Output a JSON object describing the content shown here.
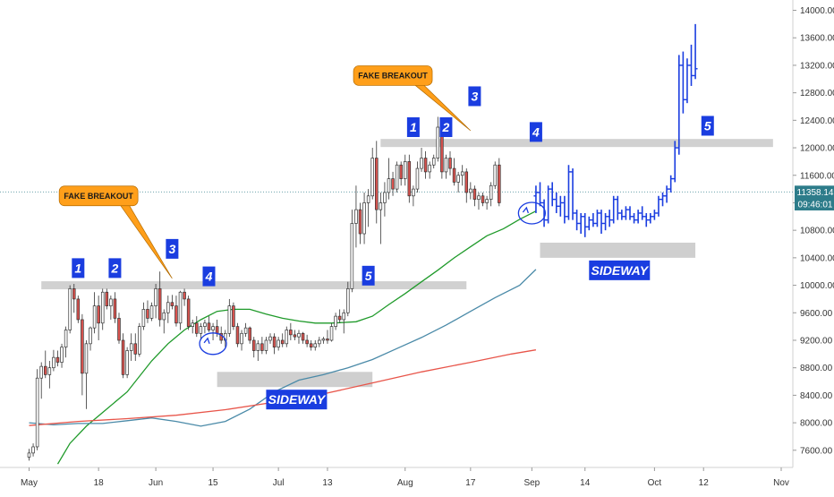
{
  "chart_data": {
    "type": "candlestick",
    "title": "",
    "xlabel": "",
    "ylabel": "",
    "ylim": [
      7350,
      14150
    ],
    "y_ticks": [
      7600,
      8000,
      8400,
      8800,
      9200,
      9600,
      10000,
      10400,
      10800,
      11200,
      11600,
      12000,
      12400,
      12800,
      13200,
      13600,
      14000
    ],
    "y_tick_labels": [
      "7600.00",
      "8000.00",
      "8400.00",
      "8800.00",
      "9200.00",
      "9600.00",
      "10000.00",
      "10400.00",
      "10800.00",
      "11200.00",
      "11600.00",
      "12000.00",
      "12400.00",
      "12800.00",
      "13200.00",
      "13600.00",
      "14000.00"
    ],
    "x_tick_labels": [
      {
        "day": 0,
        "label": "May"
      },
      {
        "day": 17,
        "label": "18"
      },
      {
        "day": 31,
        "label": "Jun"
      },
      {
        "day": 45,
        "label": "15"
      },
      {
        "day": 61,
        "label": "Jul"
      },
      {
        "day": 73,
        "label": "13"
      },
      {
        "day": 92,
        "label": "Aug"
      },
      {
        "day": 108,
        "label": "17"
      },
      {
        "day": 123,
        "label": "Sep"
      },
      {
        "day": 136,
        "label": "14"
      },
      {
        "day": 153,
        "label": "Oct"
      },
      {
        "day": 165,
        "label": "12"
      },
      {
        "day": 184,
        "label": "Nov"
      }
    ],
    "candles_start_day": 0,
    "candles": [
      [
        7500,
        7620,
        7450,
        7560
      ],
      [
        7560,
        7700,
        7510,
        7650
      ],
      [
        7650,
        8780,
        7600,
        8650
      ],
      [
        8650,
        8880,
        8350,
        8820
      ],
      [
        8820,
        9050,
        8650,
        8700
      ],
      [
        8700,
        8900,
        8500,
        8800
      ],
      [
        8800,
        9060,
        8750,
        8950
      ],
      [
        8950,
        9050,
        8820,
        8880
      ],
      [
        8880,
        9150,
        8800,
        9100
      ],
      [
        9100,
        9400,
        8950,
        9350
      ],
      [
        9350,
        10000,
        9300,
        9950
      ],
      [
        9950,
        10020,
        9600,
        9800
      ],
      [
        9800,
        9850,
        9450,
        9500
      ],
      [
        9500,
        9580,
        8400,
        8720
      ],
      [
        8720,
        9200,
        8200,
        9150
      ],
      [
        9150,
        9400,
        9050,
        9380
      ],
      [
        9380,
        9900,
        9300,
        9700
      ],
      [
        9700,
        9850,
        9200,
        9450
      ],
      [
        9450,
        9950,
        9350,
        9900
      ],
      [
        9900,
        9950,
        9650,
        9700
      ],
      [
        9700,
        9850,
        9500,
        9800
      ],
      [
        9800,
        9900,
        9450,
        9520
      ],
      [
        9520,
        9600,
        9150,
        9200
      ],
      [
        9200,
        9300,
        8650,
        8700
      ],
      [
        8700,
        9100,
        8650,
        9050
      ],
      [
        9050,
        9300,
        8900,
        9150
      ],
      [
        9150,
        9300,
        8900,
        9000
      ],
      [
        9000,
        9450,
        8960,
        9400
      ],
      [
        9400,
        9750,
        9350,
        9650
      ],
      [
        9650,
        9780,
        9450,
        9520
      ],
      [
        9520,
        9750,
        9480,
        9700
      ],
      [
        9700,
        10020,
        9520,
        9950
      ],
      [
        9950,
        10200,
        9400,
        9500
      ],
      [
        9500,
        9650,
        9300,
        9600
      ],
      [
        9600,
        9850,
        9450,
        9750
      ],
      [
        9750,
        9860,
        9650,
        9700
      ],
      [
        9700,
        9850,
        9400,
        9450
      ],
      [
        9450,
        9920,
        9350,
        9900
      ],
      [
        9900,
        9950,
        9700,
        9800
      ],
      [
        9800,
        9850,
        9350,
        9400
      ],
      [
        9400,
        9500,
        9300,
        9450
      ],
      [
        9450,
        9550,
        9250,
        9300
      ],
      [
        9300,
        9450,
        9200,
        9400
      ],
      [
        9400,
        9500,
        9300,
        9450
      ],
      [
        9450,
        9550,
        9320,
        9350
      ],
      [
        9350,
        9450,
        9200,
        9400
      ],
      [
        9400,
        9500,
        9250,
        9300
      ],
      [
        9300,
        9400,
        9150,
        9200
      ],
      [
        9200,
        9350,
        9100,
        9300
      ],
      [
        9300,
        9800,
        9250,
        9700
      ],
      [
        9700,
        9750,
        9350,
        9400
      ],
      [
        9400,
        9450,
        9100,
        9150
      ],
      [
        9150,
        9350,
        9050,
        9300
      ],
      [
        9300,
        9450,
        9250,
        9380
      ],
      [
        9380,
        9400,
        9150,
        9200
      ],
      [
        9200,
        9250,
        8950,
        9050
      ],
      [
        9050,
        9200,
        8900,
        9150
      ],
      [
        9150,
        9250,
        9000,
        9050
      ],
      [
        9050,
        9250,
        9000,
        9200
      ],
      [
        9200,
        9300,
        9150,
        9250
      ],
      [
        9250,
        9300,
        9000,
        9100
      ],
      [
        9100,
        9250,
        9050,
        9200
      ],
      [
        9200,
        9300,
        9100,
        9150
      ],
      [
        9150,
        9400,
        9100,
        9350
      ],
      [
        9350,
        9450,
        9200,
        9280
      ],
      [
        9280,
        9350,
        9200,
        9250
      ],
      [
        9250,
        9350,
        9150,
        9300
      ],
      [
        9300,
        9320,
        9150,
        9200
      ],
      [
        9200,
        9280,
        9100,
        9150
      ],
      [
        9150,
        9200,
        9050,
        9100
      ],
      [
        9100,
        9200,
        9050,
        9150
      ],
      [
        9150,
        9250,
        9100,
        9200
      ],
      [
        9200,
        9250,
        9150,
        9220
      ],
      [
        9220,
        9350,
        9150,
        9200
      ],
      [
        9200,
        9450,
        9180,
        9400
      ],
      [
        9400,
        9600,
        9350,
        9550
      ],
      [
        9550,
        9650,
        9450,
        9500
      ],
      [
        9500,
        9650,
        9300,
        9600
      ],
      [
        9600,
        10050,
        9550,
        9950
      ],
      [
        9950,
        11100,
        9900,
        10900
      ],
      [
        10900,
        11450,
        10550,
        11100
      ],
      [
        11100,
        11200,
        10600,
        10750
      ],
      [
        10750,
        11350,
        10600,
        11200
      ],
      [
        11200,
        11400,
        10850,
        11300
      ],
      [
        11300,
        12000,
        11250,
        11850
      ],
      [
        11850,
        12100,
        10900,
        11100
      ],
      [
        11100,
        11350,
        10600,
        11200
      ],
      [
        11200,
        11500,
        11000,
        11350
      ],
      [
        11350,
        11850,
        11250,
        11550
      ],
      [
        11550,
        11650,
        11300,
        11400
      ],
      [
        11400,
        11800,
        11350,
        11750
      ],
      [
        11750,
        11800,
        11450,
        11550
      ],
      [
        11550,
        11900,
        11450,
        11800
      ],
      [
        11800,
        11900,
        11200,
        11300
      ],
      [
        11300,
        11450,
        11150,
        11400
      ],
      [
        11400,
        11800,
        11350,
        11700
      ],
      [
        11700,
        12000,
        11650,
        11850
      ],
      [
        11850,
        11950,
        11550,
        11650
      ],
      [
        11650,
        11800,
        11550,
        11750
      ],
      [
        11750,
        11900,
        11700,
        11850
      ],
      [
        11850,
        12450,
        11800,
        12300
      ],
      [
        12300,
        12350,
        11550,
        11650
      ],
      [
        11650,
        11900,
        11550,
        11850
      ],
      [
        11850,
        11950,
        11600,
        11700
      ],
      [
        11700,
        11850,
        11450,
        11500
      ],
      [
        11500,
        11650,
        11350,
        11600
      ],
      [
        11600,
        11750,
        11450,
        11650
      ],
      [
        11650,
        11700,
        11200,
        11350
      ],
      [
        11350,
        11500,
        11250,
        11400
      ],
      [
        11400,
        11450,
        11150,
        11250
      ],
      [
        11250,
        11350,
        11100,
        11300
      ],
      [
        11300,
        11350,
        11150,
        11200
      ],
      [
        11200,
        11300,
        11100,
        11250
      ],
      [
        11250,
        11500,
        11150,
        11450
      ],
      [
        11450,
        11800,
        11400,
        11750
      ],
      [
        11750,
        11850,
        11150,
        11200
      ]
    ],
    "bars_start_day": 124,
    "bars": [
      [
        11300,
        11450,
        11050,
        11350
      ],
      [
        11350,
        11500,
        11150,
        11200
      ],
      [
        11200,
        11250,
        10850,
        10950
      ],
      [
        10950,
        11450,
        10900,
        11400
      ],
      [
        11400,
        11500,
        11150,
        11250
      ],
      [
        11250,
        11350,
        11050,
        11150
      ],
      [
        11150,
        11300,
        11000,
        11200
      ],
      [
        11200,
        11300,
        10900,
        11000
      ],
      [
        11000,
        11750,
        10950,
        11650
      ],
      [
        11650,
        11700,
        10950,
        11050
      ],
      [
        11050,
        11100,
        10800,
        10900
      ],
      [
        10900,
        11050,
        10750,
        11000
      ],
      [
        11000,
        11050,
        10700,
        10850
      ],
      [
        10850,
        11000,
        10800,
        10950
      ],
      [
        10950,
        11050,
        10850,
        10900
      ],
      [
        10900,
        11100,
        10850,
        11050
      ],
      [
        11050,
        11100,
        10750,
        10900
      ],
      [
        10900,
        11050,
        10800,
        11000
      ],
      [
        11000,
        11100,
        10850,
        10950
      ],
      [
        10950,
        11300,
        10900,
        11250
      ],
      [
        11250,
        11300,
        10950,
        11050
      ],
      [
        11050,
        11100,
        10950,
        11000
      ],
      [
        11000,
        11150,
        10950,
        11100
      ],
      [
        11100,
        11150,
        10950,
        11000
      ],
      [
        11000,
        11050,
        10900,
        10950
      ],
      [
        10950,
        11100,
        10900,
        11050
      ],
      [
        11050,
        11150,
        10950,
        11000
      ],
      [
        11000,
        11050,
        10850,
        10950
      ],
      [
        10950,
        11050,
        10900,
        11000
      ],
      [
        11000,
        11100,
        10950,
        11050
      ],
      [
        11050,
        11300,
        11000,
        11250
      ],
      [
        11250,
        11350,
        11150,
        11300
      ],
      [
        11300,
        11450,
        11200,
        11400
      ],
      [
        11400,
        11600,
        11350,
        11550
      ],
      [
        11550,
        12100,
        11500,
        12000
      ],
      [
        12000,
        13350,
        11900,
        13200
      ],
      [
        13200,
        13400,
        12500,
        12700
      ],
      [
        12700,
        13300,
        12650,
        13200
      ],
      [
        13200,
        13500,
        12900,
        13050
      ],
      [
        13050,
        13800,
        13000,
        13150
      ]
    ],
    "series": [
      {
        "color": "#1f9a2a",
        "points": [
          [
            7,
            7400
          ],
          [
            10,
            7700
          ],
          [
            14,
            7950
          ],
          [
            18,
            8150
          ],
          [
            24,
            8450
          ],
          [
            30,
            8900
          ],
          [
            34,
            9150
          ],
          [
            38,
            9350
          ],
          [
            42,
            9500
          ],
          [
            46,
            9620
          ],
          [
            50,
            9650
          ],
          [
            54,
            9650
          ],
          [
            58,
            9580
          ],
          [
            62,
            9520
          ],
          [
            66,
            9480
          ],
          [
            70,
            9450
          ],
          [
            74,
            9450
          ],
          [
            80,
            9470
          ],
          [
            84,
            9550
          ],
          [
            88,
            9720
          ],
          [
            92,
            9880
          ],
          [
            96,
            10050
          ],
          [
            100,
            10220
          ],
          [
            104,
            10400
          ],
          [
            108,
            10560
          ],
          [
            112,
            10720
          ],
          [
            116,
            10820
          ],
          [
            120,
            10960
          ],
          [
            124,
            11080
          ]
        ]
      },
      {
        "color": "#4a8aa8",
        "points": [
          [
            0,
            8000
          ],
          [
            6,
            7970
          ],
          [
            12,
            7990
          ],
          [
            18,
            7990
          ],
          [
            24,
            8030
          ],
          [
            30,
            8070
          ],
          [
            36,
            8020
          ],
          [
            42,
            7950
          ],
          [
            48,
            8020
          ],
          [
            54,
            8200
          ],
          [
            60,
            8450
          ],
          [
            66,
            8620
          ],
          [
            72,
            8700
          ],
          [
            78,
            8800
          ],
          [
            84,
            8920
          ],
          [
            90,
            9080
          ],
          [
            96,
            9240
          ],
          [
            102,
            9420
          ],
          [
            108,
            9620
          ],
          [
            114,
            9820
          ],
          [
            120,
            10000
          ],
          [
            124,
            10230
          ]
        ]
      },
      {
        "color": "#e8554a",
        "points": [
          [
            0,
            7960
          ],
          [
            12,
            8020
          ],
          [
            24,
            8060
          ],
          [
            36,
            8110
          ],
          [
            48,
            8190
          ],
          [
            60,
            8300
          ],
          [
            72,
            8420
          ],
          [
            84,
            8580
          ],
          [
            96,
            8740
          ],
          [
            108,
            8880
          ],
          [
            118,
            9000
          ],
          [
            124,
            9060
          ]
        ]
      }
    ],
    "resistance_lines": [
      {
        "y": 10000,
        "x_start_day": 3,
        "x_end_day": 107
      },
      {
        "y": 12070,
        "x_start_day": 86,
        "x_end_day": 182
      }
    ],
    "sideway_zones": [
      {
        "y_low": 8520,
        "y_high": 8740,
        "x_start_day": 46,
        "x_end_day": 84,
        "label": "SIDEWAY"
      },
      {
        "y_low": 10400,
        "y_high": 10620,
        "x_start_day": 125,
        "x_end_day": 163,
        "label": "SIDEWAY"
      }
    ],
    "wave_labels": [
      {
        "label": "1",
        "day": 12,
        "y": 10250
      },
      {
        "label": "2",
        "day": 21,
        "y": 10250
      },
      {
        "label": "3",
        "day": 35,
        "y": 10530
      },
      {
        "label": "4",
        "day": 44,
        "y": 10130
      },
      {
        "label": "5",
        "day": 83,
        "y": 10140
      },
      {
        "label": "1",
        "day": 94,
        "y": 12300
      },
      {
        "label": "2",
        "day": 102,
        "y": 12300
      },
      {
        "label": "3",
        "day": 109,
        "y": 12750
      },
      {
        "label": "4",
        "day": 124,
        "y": 12230
      },
      {
        "label": "5",
        "day": 166,
        "y": 12320
      }
    ],
    "callouts": [
      {
        "label": "FAKE BREAKOUT",
        "day": 17,
        "y": 11300,
        "pointer_day": 35,
        "pointer_y": 10100
      },
      {
        "label": "FAKE BREAKOUT",
        "day": 89,
        "y": 13050,
        "pointer_day": 108,
        "pointer_y": 12250
      }
    ],
    "ellipses": [
      {
        "day": 45,
        "y": 9150
      },
      {
        "day": 123,
        "y": 11050
      }
    ],
    "price_tags": [
      {
        "value": 11358.14,
        "label": "11358.14",
        "color": "#2d7c8a"
      },
      {
        "value": 11180,
        "label": "09:46:01",
        "color": "#2d7c8a"
      }
    ],
    "current_price_line": 11358.14,
    "colors": {
      "candle_up": "#ffffff",
      "candle_down": "#d9534f",
      "bar_color": "#1a3de0",
      "label_box": "#1a3de0",
      "callout_fill": "#ff9f1a",
      "zone_fill": "#cfcfcf"
    }
  }
}
